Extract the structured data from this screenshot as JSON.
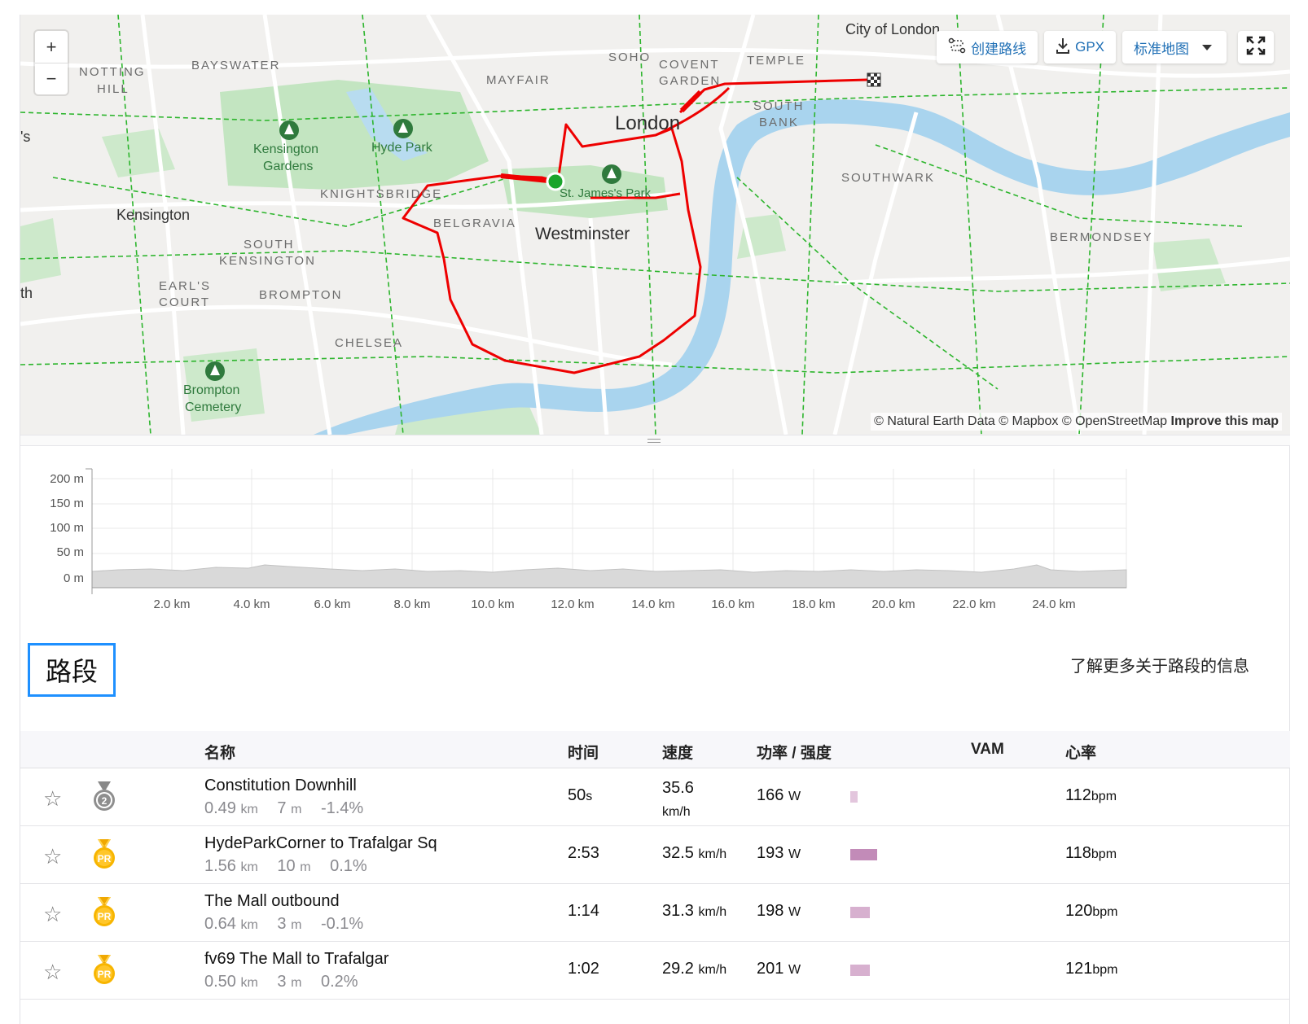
{
  "map": {
    "zoom_in": "+",
    "zoom_out": "−",
    "tools": {
      "create_route": "创建路线",
      "gpx": "GPX",
      "map_style": "标准地图"
    },
    "attribution": "© Natural Earth Data © Mapbox © OpenStreetMap",
    "improve": "Improve this map",
    "labels": {
      "city_of_london": "City of London",
      "london": "London",
      "westminster": "Westminster",
      "kensington": "Kensington",
      "notting": "NOTTING",
      "hill": "HILL",
      "bayswater": "BAYSWATER",
      "mayfair": "MAYFAIR",
      "soho": "SOHO",
      "covent": "COVENT",
      "garden": "GARDEN",
      "temple": "TEMPLE",
      "south": "SOUTH",
      "bank": "BANK",
      "southwark": "SOUTHWARK",
      "bermondsey": "BERMONDSEY",
      "knightsbridge": "KNIGHTSBRIDGE",
      "belgravia": "BELGRAVIA",
      "south_kensington": "SOUTH",
      "kensington2": "KENSINGTON",
      "earls": "EARL'S",
      "court": "COURT",
      "brompton": "BROMPTON",
      "chelsea": "CHELSEA",
      "kensington_gardens_1": "Kensington",
      "kensington_gardens_2": "Gardens",
      "hyde_park": "Hyde Park",
      "st_james": "St. James's Park",
      "brompton_cem_1": "Brompton",
      "brompton_cem_2": "Cemetery",
      "edge_s": "'s",
      "edge_th": "th"
    }
  },
  "elevation": {
    "y_ticks": [
      "200 m",
      "150 m",
      "100 m",
      "50 m",
      "0 m"
    ],
    "x_ticks": [
      "2.0 km",
      "4.0 km",
      "6.0 km",
      "8.0 km",
      "10.0 km",
      "12.0 km",
      "14.0 km",
      "16.0 km",
      "18.0 km",
      "20.0 km",
      "22.0 km",
      "24.0 km"
    ]
  },
  "segments": {
    "title": "路段",
    "learn_more": "了解更多关于路段的信息",
    "columns": {
      "name": "名称",
      "time": "时间",
      "speed": "速度",
      "power": "功率 / 强度",
      "vam": "VAM",
      "hr": "心率"
    },
    "rows": [
      {
        "name": "Constitution Downhill",
        "distance": "0.49",
        "distance_unit": "km",
        "elev": "7",
        "elev_unit": "m",
        "grade": "-1.4%",
        "time": "50",
        "time_unit": "s",
        "speed": "35.6",
        "speed_unit": "km/h",
        "power": "166",
        "power_unit": "W",
        "intensity": 0.2,
        "intensity_color": "#e3c6dd",
        "hr": "112",
        "hr_unit": "bpm",
        "medal": "2"
      },
      {
        "name": "HydeParkCorner to Trafalgar Sq",
        "distance": "1.56",
        "distance_unit": "km",
        "elev": "10",
        "elev_unit": "m",
        "grade": "0.1%",
        "time": "2:53",
        "time_unit": "",
        "speed": "32.5",
        "speed_unit": "km/h",
        "power": "193",
        "power_unit": "W",
        "intensity": 0.75,
        "intensity_color": "#c28bb8",
        "hr": "118",
        "hr_unit": "bpm",
        "medal": "PR"
      },
      {
        "name": "The Mall outbound",
        "distance": "0.64",
        "distance_unit": "km",
        "elev": "3",
        "elev_unit": "m",
        "grade": "-0.1%",
        "time": "1:14",
        "time_unit": "",
        "speed": "31.3",
        "speed_unit": "km/h",
        "power": "198",
        "power_unit": "W",
        "intensity": 0.55,
        "intensity_color": "#d7b0cf",
        "hr": "120",
        "hr_unit": "bpm",
        "medal": "PR"
      },
      {
        "name": "fv69 The Mall to Trafalgar",
        "distance": "0.50",
        "distance_unit": "km",
        "elev": "3",
        "elev_unit": "m",
        "grade": "0.2%",
        "time": "1:02",
        "time_unit": "",
        "speed": "29.2",
        "speed_unit": "km/h",
        "power": "201",
        "power_unit": "W",
        "intensity": 0.55,
        "intensity_color": "#d7b0cf",
        "hr": "121",
        "hr_unit": "bpm",
        "medal": "PR"
      }
    ]
  }
}
